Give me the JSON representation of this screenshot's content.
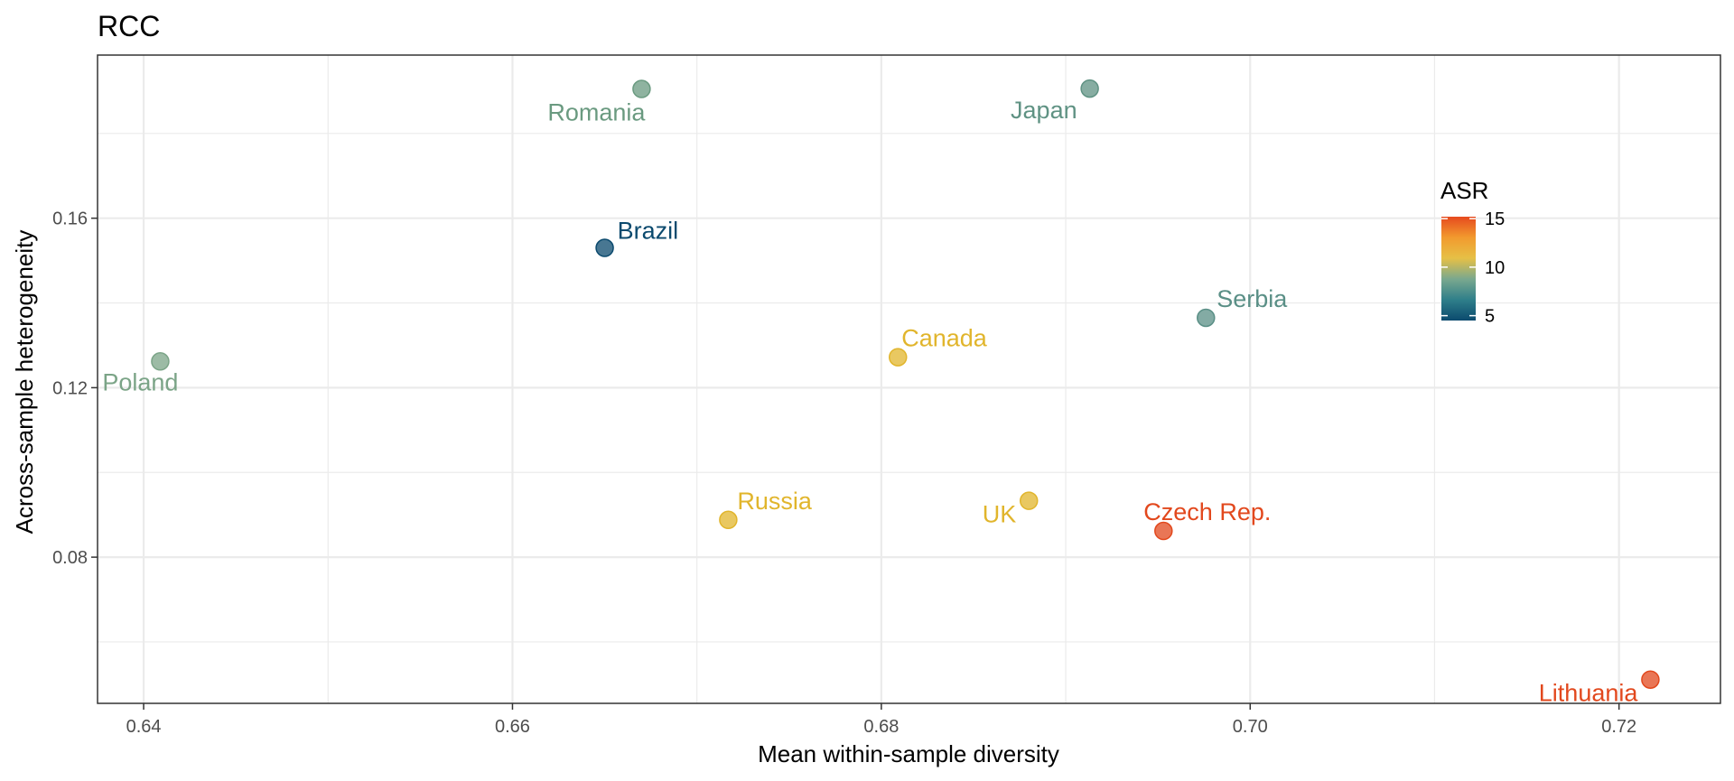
{
  "chart_data": {
    "type": "scatter",
    "title": "RCC",
    "xlabel": "Mean within-sample diversity",
    "ylabel": "Across-sample heterogeneity",
    "xlim": [
      0.6375,
      0.7255
    ],
    "ylim": [
      0.0455,
      0.1985
    ],
    "xticks": [
      0.64,
      0.66,
      0.68,
      0.7,
      0.72
    ],
    "xtick_labels": [
      "0.64",
      "0.66",
      "0.68",
      "0.70",
      "0.72"
    ],
    "yticks": [
      0.08,
      0.12,
      0.16
    ],
    "ytick_labels": [
      "0.08",
      "0.12",
      "0.16"
    ],
    "grid": true,
    "legend": {
      "title": "ASR",
      "placement": "right-inside",
      "min": 4.5,
      "max": 15.2,
      "ticks": [
        5,
        10,
        15
      ],
      "tick_labels": [
        "5",
        "10",
        "15"
      ],
      "colors": [
        "#0b4a6e",
        "#2f7f8a",
        "#7aa88e",
        "#e6c046",
        "#f29a2e",
        "#e64a1e"
      ]
    },
    "points": [
      {
        "label": "Romania",
        "x": 0.667,
        "y": 0.1905,
        "asr": 7.3,
        "color": "#6a9a80"
      },
      {
        "label": "Japan",
        "x": 0.6913,
        "y": 0.1906,
        "asr": 7.0,
        "color": "#5f9283"
      },
      {
        "label": "Brazil",
        "x": 0.665,
        "y": 0.153,
        "asr": 4.6,
        "color": "#0b4a6e"
      },
      {
        "label": "Serbia",
        "x": 0.6976,
        "y": 0.1365,
        "asr": 6.5,
        "color": "#5a8f86"
      },
      {
        "label": "Poland",
        "x": 0.6409,
        "y": 0.1262,
        "asr": 7.7,
        "color": "#7ba487"
      },
      {
        "label": "Canada",
        "x": 0.6809,
        "y": 0.1272,
        "asr": 10.5,
        "color": "#e1b52c"
      },
      {
        "label": "Russia",
        "x": 0.6717,
        "y": 0.0888,
        "asr": 10.5,
        "color": "#e1b52c"
      },
      {
        "label": "UK",
        "x": 0.688,
        "y": 0.0933,
        "asr": 10.5,
        "color": "#e1b52c"
      },
      {
        "label": "Czech Rep.",
        "x": 0.6953,
        "y": 0.0862,
        "asr": 15.0,
        "color": "#e2481d"
      },
      {
        "label": "Lithuania",
        "x": 0.7217,
        "y": 0.0511,
        "asr": 15.0,
        "color": "#e2481d"
      }
    ]
  }
}
